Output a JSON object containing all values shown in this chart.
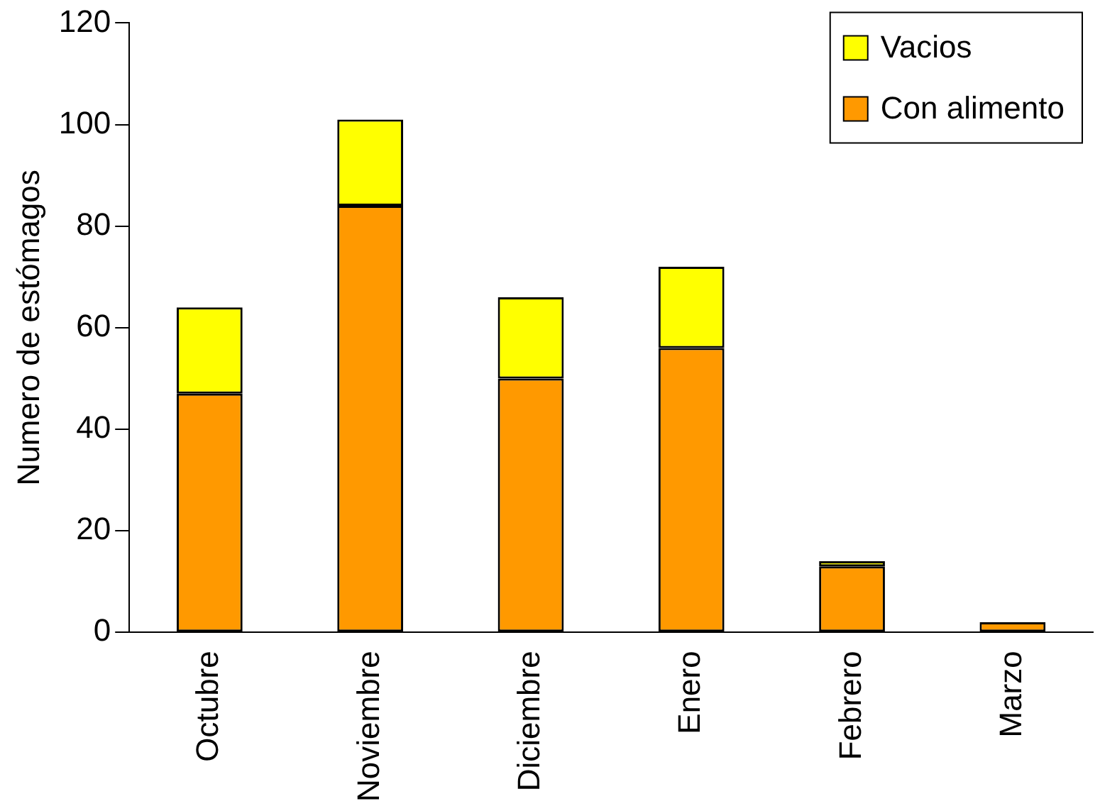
{
  "chart_data": {
    "type": "bar",
    "stacked": true,
    "ylabel": "Numero de estómagos",
    "categories": [
      "Octubre",
      "Noviembre",
      "Diciembre",
      "Enero",
      "Febrero",
      "Marzo"
    ],
    "series": [
      {
        "name": "Con alimento",
        "color": "#ff9900",
        "values": [
          47,
          84,
          50,
          56,
          13,
          2
        ]
      },
      {
        "name": "Vacios",
        "color": "#ffff00",
        "values": [
          17,
          17,
          16,
          16,
          1,
          0
        ]
      }
    ],
    "ylim": [
      0,
      120
    ],
    "yticks": [
      0,
      20,
      40,
      60,
      80,
      100,
      120
    ],
    "grid": false,
    "legend": "top right"
  }
}
